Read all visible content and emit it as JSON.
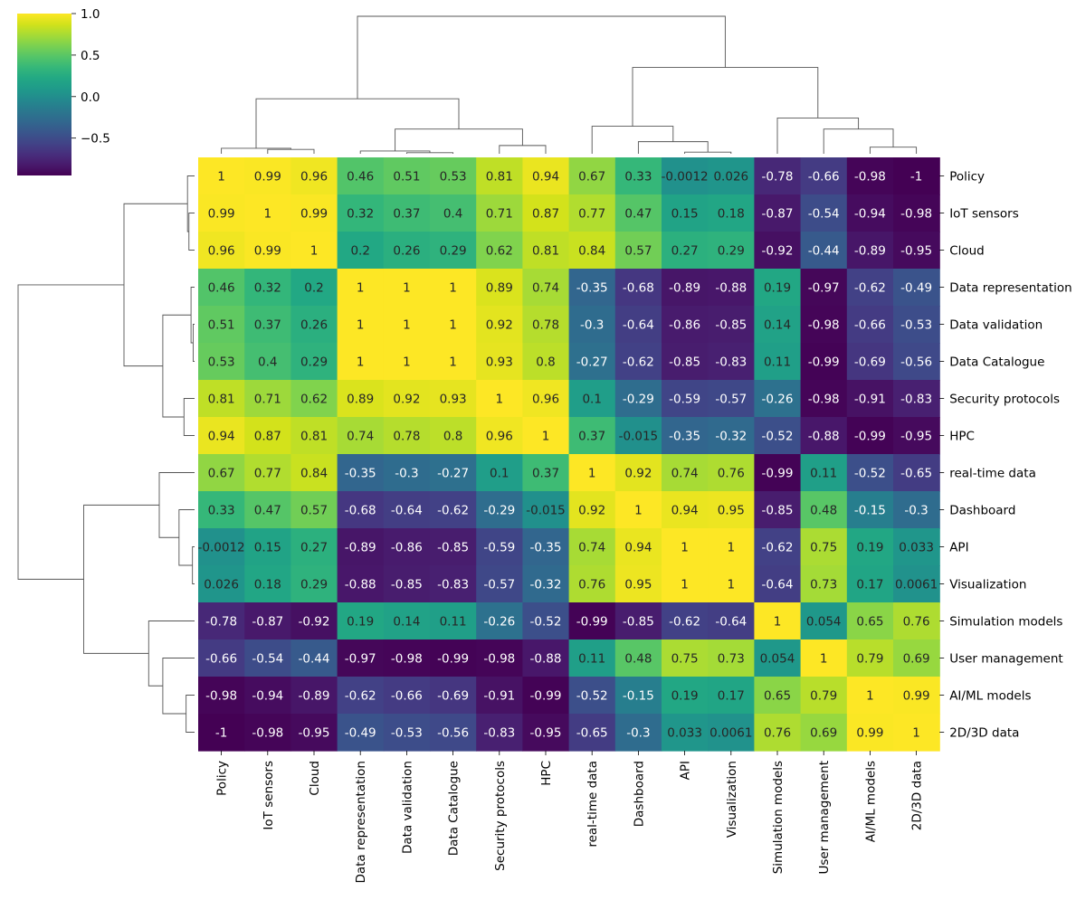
{
  "chart_data": {
    "type": "heatmap",
    "subtype": "clustermap",
    "colormap": "viridis",
    "title": "",
    "xlabel": "",
    "ylabel": "",
    "vmin": -1,
    "vmax": 1,
    "colorbar": {
      "ticks": [
        1.0,
        0.5,
        0.0,
        -0.5
      ],
      "tick_labels": [
        "1.0",
        "0.5",
        "0.0",
        "−0.5"
      ],
      "placement": "top-left"
    },
    "row_labels": [
      "Policy",
      "IoT sensors",
      "Cloud",
      "Data representation",
      "Data validation",
      "Data Catalogue",
      "Security protocols",
      "HPC",
      "real-time data",
      "Dashboard",
      "API",
      "Visualization",
      "Simulation models",
      "User management",
      "AI/ML models",
      "2D/3D data"
    ],
    "col_labels": [
      "Policy",
      "IoT sensors",
      "Cloud",
      "Data representation",
      "Data validation",
      "Data Catalogue",
      "Security protocols",
      "HPC",
      "real-time data",
      "Dashboard",
      "API",
      "Visualization",
      "Simulation models",
      "User management",
      "AI/ML models",
      "2D/3D data"
    ],
    "values": [
      [
        1,
        0.99,
        0.96,
        0.46,
        0.51,
        0.53,
        0.81,
        0.94,
        0.67,
        0.33,
        -0.0012,
        0.026,
        -0.78,
        -0.66,
        -0.98,
        -1
      ],
      [
        0.99,
        1,
        0.99,
        0.32,
        0.37,
        0.4,
        0.71,
        0.87,
        0.77,
        0.47,
        0.15,
        0.18,
        -0.87,
        -0.54,
        -0.94,
        -0.98
      ],
      [
        0.96,
        0.99,
        1,
        0.2,
        0.26,
        0.29,
        0.62,
        0.81,
        0.84,
        0.57,
        0.27,
        0.29,
        -0.92,
        -0.44,
        -0.89,
        -0.95
      ],
      [
        0.46,
        0.32,
        0.2,
        1,
        1,
        1,
        0.89,
        0.74,
        -0.35,
        -0.68,
        -0.89,
        -0.88,
        0.19,
        -0.97,
        -0.62,
        -0.49
      ],
      [
        0.51,
        0.37,
        0.26,
        1,
        1,
        1,
        0.92,
        0.78,
        -0.3,
        -0.64,
        -0.86,
        -0.85,
        0.14,
        -0.98,
        -0.66,
        -0.53
      ],
      [
        0.53,
        0.4,
        0.29,
        1,
        1,
        1,
        0.93,
        0.8,
        -0.27,
        -0.62,
        -0.85,
        -0.83,
        0.11,
        -0.99,
        -0.69,
        -0.56
      ],
      [
        0.81,
        0.71,
        0.62,
        0.89,
        0.92,
        0.93,
        1,
        0.96,
        0.1,
        -0.29,
        -0.59,
        -0.57,
        -0.26,
        -0.98,
        -0.91,
        -0.83
      ],
      [
        0.94,
        0.87,
        0.81,
        0.74,
        0.78,
        0.8,
        0.96,
        1,
        0.37,
        -0.015,
        -0.35,
        -0.32,
        -0.52,
        -0.88,
        -0.99,
        -0.95
      ],
      [
        0.67,
        0.77,
        0.84,
        -0.35,
        -0.3,
        -0.27,
        0.1,
        0.37,
        1,
        0.92,
        0.74,
        0.76,
        -0.99,
        0.11,
        -0.52,
        -0.65
      ],
      [
        0.33,
        0.47,
        0.57,
        -0.68,
        -0.64,
        -0.62,
        -0.29,
        -0.015,
        0.92,
        1,
        0.94,
        0.95,
        -0.85,
        0.48,
        -0.15,
        -0.3
      ],
      [
        -0.0012,
        0.15,
        0.27,
        -0.89,
        -0.86,
        -0.85,
        -0.59,
        -0.35,
        0.74,
        0.94,
        1,
        1,
        -0.62,
        0.75,
        0.19,
        0.033
      ],
      [
        0.026,
        0.18,
        0.29,
        -0.88,
        -0.85,
        -0.83,
        -0.57,
        -0.32,
        0.76,
        0.95,
        1,
        1,
        -0.64,
        0.73,
        0.17,
        0.0061
      ],
      [
        -0.78,
        -0.87,
        -0.92,
        0.19,
        0.14,
        0.11,
        -0.26,
        -0.52,
        -0.99,
        -0.85,
        -0.62,
        -0.64,
        1,
        0.054,
        0.65,
        0.76
      ],
      [
        -0.66,
        -0.54,
        -0.44,
        -0.97,
        -0.98,
        -0.99,
        -0.98,
        -0.88,
        0.11,
        0.48,
        0.75,
        0.73,
        0.054,
        1,
        0.79,
        0.69
      ],
      [
        -0.98,
        -0.94,
        -0.89,
        -0.62,
        -0.66,
        -0.69,
        -0.91,
        -0.99,
        -0.52,
        -0.15,
        0.19,
        0.17,
        0.65,
        0.79,
        1,
        0.99
      ],
      [
        -1,
        -0.98,
        -0.95,
        -0.49,
        -0.53,
        -0.56,
        -0.83,
        -0.95,
        -0.65,
        -0.3,
        0.033,
        0.0061,
        0.76,
        0.69,
        0.99,
        1
      ]
    ],
    "annotations": [
      [
        "1",
        "0.99",
        "0.96",
        "0.46",
        "0.51",
        "0.53",
        "0.81",
        "0.94",
        "0.67",
        "0.33",
        "-0.0012",
        "0.026",
        "-0.78",
        "-0.66",
        "-0.98",
        "-1"
      ],
      [
        "0.99",
        "1",
        "0.99",
        "0.32",
        "0.37",
        "0.4",
        "0.71",
        "0.87",
        "0.77",
        "0.47",
        "0.15",
        "0.18",
        "-0.87",
        "-0.54",
        "-0.94",
        "-0.98"
      ],
      [
        "0.96",
        "0.99",
        "1",
        "0.2",
        "0.26",
        "0.29",
        "0.62",
        "0.81",
        "0.84",
        "0.57",
        "0.27",
        "0.29",
        "-0.92",
        "-0.44",
        "-0.89",
        "-0.95"
      ],
      [
        "0.46",
        "0.32",
        "0.2",
        "1",
        "1",
        "1",
        "0.89",
        "0.74",
        "-0.35",
        "-0.68",
        "-0.89",
        "-0.88",
        "0.19",
        "-0.97",
        "-0.62",
        "-0.49"
      ],
      [
        "0.51",
        "0.37",
        "0.26",
        "1",
        "1",
        "1",
        "0.92",
        "0.78",
        "-0.3",
        "-0.64",
        "-0.86",
        "-0.85",
        "0.14",
        "-0.98",
        "-0.66",
        "-0.53"
      ],
      [
        "0.53",
        "0.4",
        "0.29",
        "1",
        "1",
        "1",
        "0.93",
        "0.8",
        "-0.27",
        "-0.62",
        "-0.85",
        "-0.83",
        "0.11",
        "-0.99",
        "-0.69",
        "-0.56"
      ],
      [
        "0.81",
        "0.71",
        "0.62",
        "0.89",
        "0.92",
        "0.93",
        "1",
        "0.96",
        "0.1",
        "-0.29",
        "-0.59",
        "-0.57",
        "-0.26",
        "-0.98",
        "-0.91",
        "-0.83"
      ],
      [
        "0.94",
        "0.87",
        "0.81",
        "0.74",
        "0.78",
        "0.8",
        "0.96",
        "1",
        "0.37",
        "-0.015",
        "-0.35",
        "-0.32",
        "-0.52",
        "-0.88",
        "-0.99",
        "-0.95"
      ],
      [
        "0.67",
        "0.77",
        "0.84",
        "-0.35",
        "-0.3",
        "-0.27",
        "0.1",
        "0.37",
        "1",
        "0.92",
        "0.74",
        "0.76",
        "-0.99",
        "0.11",
        "-0.52",
        "-0.65"
      ],
      [
        "0.33",
        "0.47",
        "0.57",
        "-0.68",
        "-0.64",
        "-0.62",
        "-0.29",
        "-0.015",
        "0.92",
        "1",
        "0.94",
        "0.95",
        "-0.85",
        "0.48",
        "-0.15",
        "-0.3"
      ],
      [
        "-0.0012",
        "0.15",
        "0.27",
        "-0.89",
        "-0.86",
        "-0.85",
        "-0.59",
        "-0.35",
        "0.74",
        "0.94",
        "1",
        "1",
        "-0.62",
        "0.75",
        "0.19",
        "0.033"
      ],
      [
        "0.026",
        "0.18",
        "0.29",
        "-0.88",
        "-0.85",
        "-0.83",
        "-0.57",
        "-0.32",
        "0.76",
        "0.95",
        "1",
        "1",
        "-0.64",
        "0.73",
        "0.17",
        "0.0061"
      ],
      [
        "-0.78",
        "-0.87",
        "-0.92",
        "0.19",
        "0.14",
        "0.11",
        "-0.26",
        "-0.52",
        "-0.99",
        "-0.85",
        "-0.62",
        "-0.64",
        "1",
        "0.054",
        "0.65",
        "0.76"
      ],
      [
        "-0.66",
        "-0.54",
        "-0.44",
        "-0.97",
        "-0.98",
        "-0.99",
        "-0.98",
        "-0.88",
        "0.11",
        "0.48",
        "0.75",
        "0.73",
        "0.054",
        "1",
        "0.79",
        "0.69"
      ],
      [
        "-0.98",
        "-0.94",
        "-0.89",
        "-0.62",
        "-0.66",
        "-0.69",
        "-0.91",
        "-0.99",
        "-0.52",
        "-0.15",
        "0.19",
        "0.17",
        "0.65",
        "0.79",
        "1",
        "0.99"
      ],
      [
        "-1",
        "-0.98",
        "-0.95",
        "-0.49",
        "-0.53",
        "-0.56",
        "-0.83",
        "-0.95",
        "-0.65",
        "-0.3",
        "0.033",
        "0.0061",
        "0.76",
        "0.69",
        "0.99",
        "1"
      ]
    ],
    "dendrogram": {
      "linkage_leaf_indices": "rows and columns share the same hierarchical ordering",
      "merges": [
        {
          "a": 4,
          "b": 5,
          "height": 0.02
        },
        {
          "a": 3,
          "b": "m0",
          "height": 0.05
        },
        {
          "a": 10,
          "b": 11,
          "height": 0.03
        },
        {
          "a": 1,
          "b": 2,
          "height": 0.08
        },
        {
          "a": 0,
          "b": "m3",
          "height": 0.1
        },
        {
          "a": 14,
          "b": 15,
          "height": 0.12
        },
        {
          "a": 6,
          "b": 7,
          "height": 0.15
        },
        {
          "a": 9,
          "b": "m2",
          "height": 0.22
        },
        {
          "a": 13,
          "b": "m5",
          "height": 0.45
        },
        {
          "a": "m1",
          "b": "m6",
          "height": 0.45
        },
        {
          "a": 8,
          "b": "m7",
          "height": 0.5
        },
        {
          "a": 12,
          "b": "m8",
          "height": 0.65
        },
        {
          "a": "m4",
          "b": "m9",
          "height": 1.0
        },
        {
          "a": "m10",
          "b": "m11",
          "height": 1.57
        },
        {
          "a": "m12",
          "b": "m13",
          "height": 2.5
        }
      ]
    }
  },
  "colors": {
    "dendrogram_line": "#555555",
    "text_dark": "#262626",
    "text_light": "#ffffff"
  }
}
